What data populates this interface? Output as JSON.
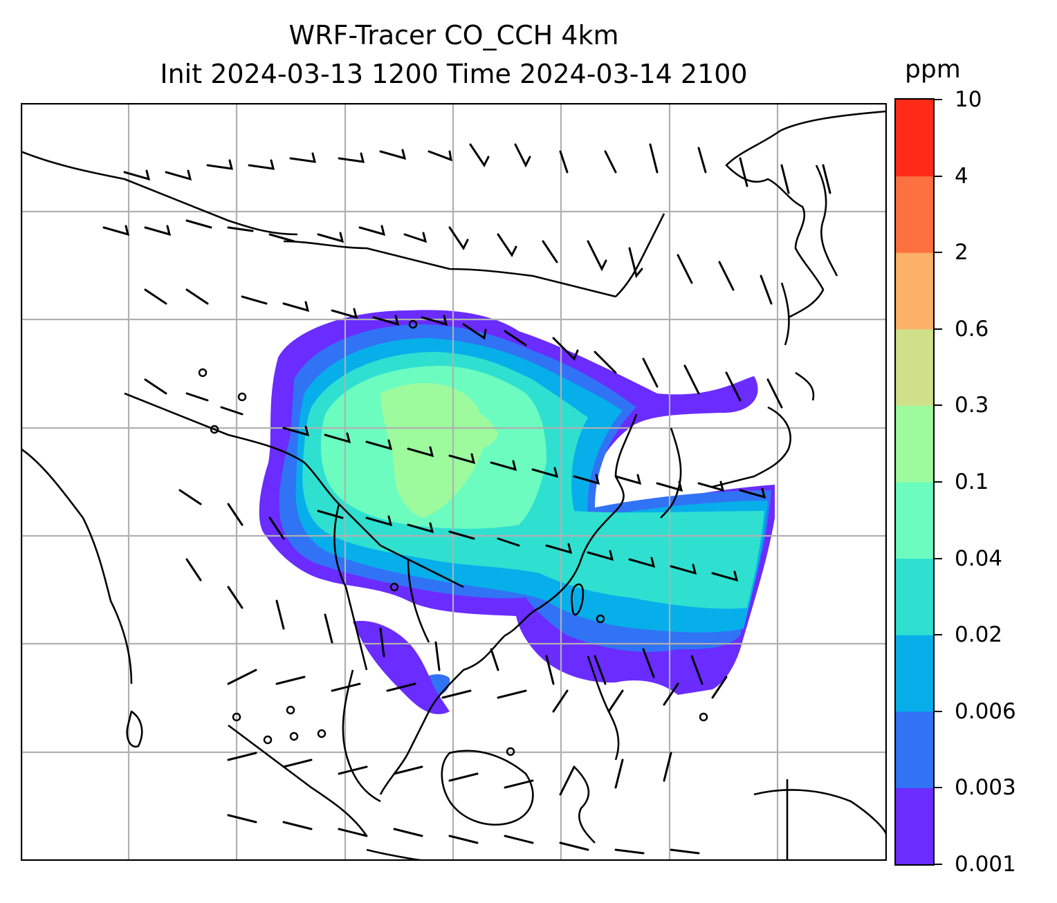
{
  "title": {
    "line1": "WRF-Tracer CO_CCH 4km",
    "line2": "Init 2024-03-13 1200 Time 2024-03-14 2100"
  },
  "colorbar": {
    "unit": "ppm",
    "levels": [
      "0.001",
      "0.003",
      "0.006",
      "0.02",
      "0.04",
      "0.1",
      "0.3",
      "0.6",
      "2",
      "4",
      "10"
    ],
    "colors": [
      "#6a2cff",
      "#3173f5",
      "#06afea",
      "#2fe0d0",
      "#6cfcc0",
      "#9dfb9e",
      "#cee08a",
      "#fdb067",
      "#fd7140",
      "#ff2a17"
    ]
  },
  "map": {
    "projection": "plate carree",
    "gridlines": true,
    "coastlines": true,
    "wind_barbs": true,
    "field": "CO_CCH tracer plume over East Asia and the western Pacific"
  }
}
